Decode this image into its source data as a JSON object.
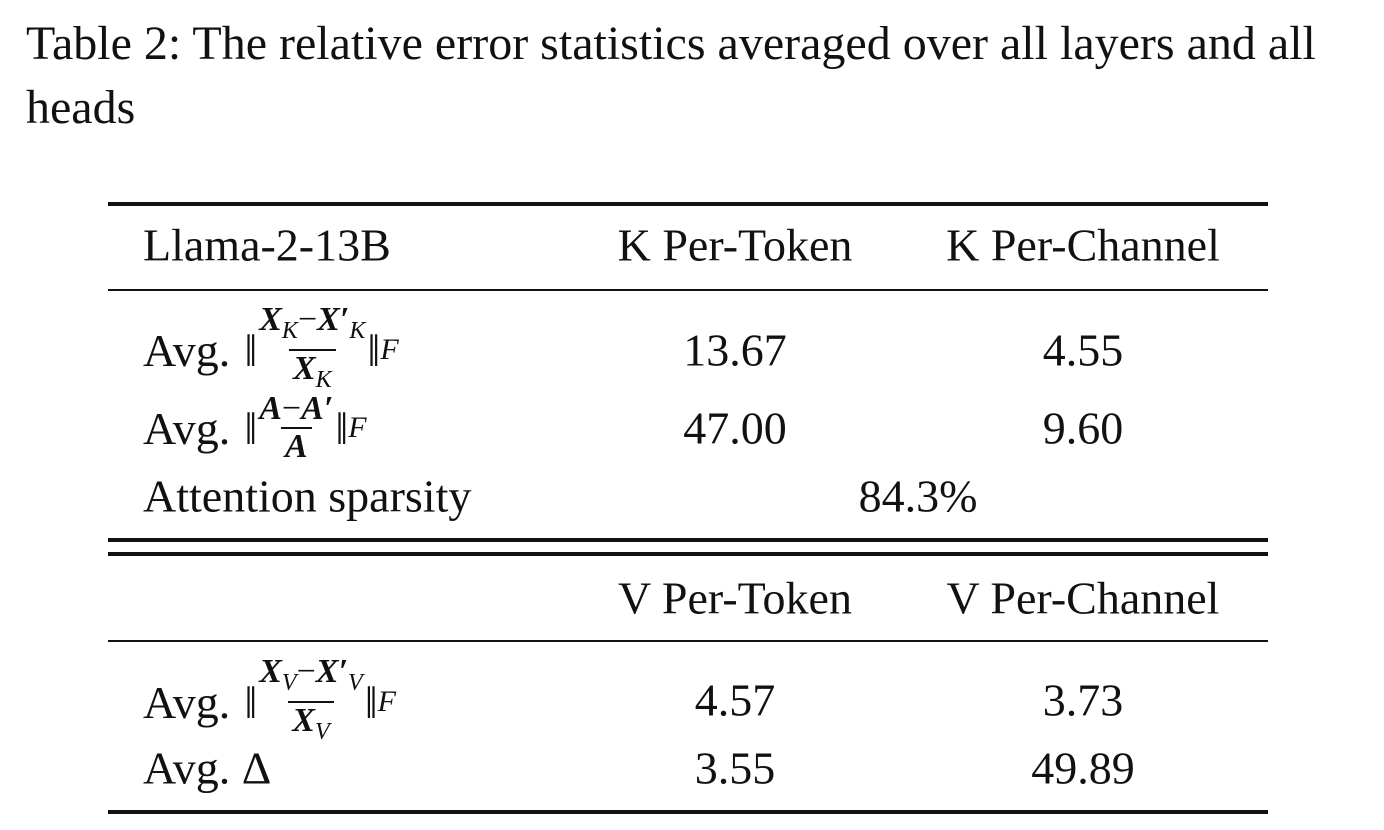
{
  "caption": {
    "label": "Table 2:",
    "text": "The relative error statistics averaged over all layers and all heads"
  },
  "sections": [
    {
      "header": [
        "Llama-2-13B",
        "K Per-Token",
        "K Per-Channel"
      ],
      "rows": [
        {
          "label": {
            "prefix": "Avg.",
            "norm": "‖",
            "num_a": "X",
            "num_a_sub": "K",
            "op": "−",
            "num_b": "X′",
            "num_b_sub": "K",
            "den": "X",
            "den_sub": "K",
            "norm_sub": "F"
          },
          "cells": [
            "13.67",
            "4.55"
          ]
        },
        {
          "label": {
            "prefix": "Avg.",
            "norm": "‖",
            "num_a": "A",
            "op": "−",
            "num_b": "A′",
            "den": "A",
            "norm_sub": "F"
          },
          "cells": [
            "47.00",
            "9.60"
          ]
        },
        {
          "label": {
            "text": "Attention sparsity"
          },
          "cells": [
            "84.3%"
          ]
        }
      ]
    },
    {
      "header": [
        "V Per-Token",
        "V Per-Channel"
      ],
      "rows": [
        {
          "label": {
            "prefix": "Avg.",
            "norm": "‖",
            "num_a": "X",
            "num_a_sub": "V",
            "op": "−",
            "num_b": "X′",
            "num_b_sub": "V",
            "den": "X",
            "den_sub": "V",
            "norm_sub": "F"
          },
          "cells": [
            "4.57",
            "3.73"
          ]
        },
        {
          "label": {
            "text": "Avg. Δ"
          },
          "cells": [
            "3.55",
            "49.89"
          ]
        }
      ]
    }
  ]
}
